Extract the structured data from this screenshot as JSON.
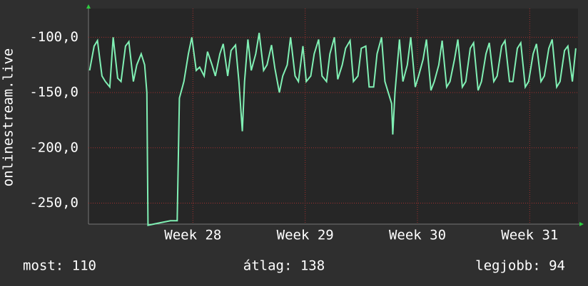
{
  "chart_data": {
    "type": "line",
    "ylabel": "onlinestream.live",
    "xlim": [
      27.07,
      31.43
    ],
    "xticks": [
      {
        "value": 28,
        "label": "Week 28"
      },
      {
        "value": 29,
        "label": "Week 29"
      },
      {
        "value": 30,
        "label": "Week 30"
      },
      {
        "value": 31,
        "label": "Week 31"
      }
    ],
    "ylim": [
      -269,
      -74
    ],
    "yticks": [
      {
        "value": -100,
        "label": "-100,0"
      },
      {
        "value": -150,
        "label": "-150,0"
      },
      {
        "value": -200,
        "label": "-200,0"
      },
      {
        "value": -250,
        "label": "-250,0"
      }
    ],
    "grid": true,
    "x": [
      27.08,
      27.12,
      27.15,
      27.19,
      27.22,
      27.26,
      27.29,
      27.33,
      27.36,
      27.4,
      27.43,
      27.47,
      27.5,
      27.54,
      27.57,
      27.59,
      27.6,
      27.7,
      27.8,
      27.86,
      27.88,
      27.92,
      27.96,
      27.99,
      28.03,
      28.06,
      28.1,
      28.13,
      28.17,
      28.2,
      28.24,
      28.27,
      28.31,
      28.34,
      28.38,
      28.41,
      28.44,
      28.46,
      28.49,
      28.52,
      28.56,
      28.59,
      28.63,
      28.66,
      28.7,
      28.73,
      28.77,
      28.8,
      28.84,
      28.87,
      28.91,
      28.94,
      28.98,
      29.01,
      29.05,
      29.08,
      29.12,
      29.15,
      29.19,
      29.22,
      29.26,
      29.29,
      29.33,
      29.36,
      29.4,
      29.43,
      29.47,
      29.5,
      29.54,
      29.57,
      29.61,
      29.64,
      29.68,
      29.71,
      29.74,
      29.77,
      29.78,
      29.8,
      29.84,
      29.87,
      29.91,
      29.94,
      29.98,
      30.01,
      30.05,
      30.08,
      30.12,
      30.15,
      30.19,
      30.22,
      30.26,
      30.29,
      30.33,
      30.36,
      30.4,
      30.43,
      30.47,
      30.5,
      30.54,
      30.57,
      30.61,
      30.64,
      30.68,
      30.71,
      30.75,
      30.78,
      30.82,
      30.85,
      30.89,
      30.92,
      30.96,
      30.99,
      31.03,
      31.06,
      31.1,
      31.13,
      31.17,
      31.2,
      31.24,
      31.27,
      31.31,
      31.34,
      31.38,
      31.41
    ],
    "series": [
      {
        "color": "#80f0b4",
        "values": [
          -130,
          -108,
          -103,
          -135,
          -140,
          -145,
          -100,
          -137,
          -140,
          -108,
          -104,
          -140,
          -125,
          -115,
          -125,
          -150,
          -270,
          -268,
          -266,
          -266,
          -155,
          -140,
          -115,
          -100,
          -130,
          -127,
          -135,
          -113,
          -125,
          -135,
          -115,
          -106,
          -135,
          -112,
          -107,
          -140,
          -185,
          -140,
          -102,
          -130,
          -115,
          -96,
          -130,
          -125,
          -107,
          -128,
          -150,
          -135,
          -125,
          -100,
          -135,
          -140,
          -108,
          -140,
          -135,
          -115,
          -102,
          -135,
          -140,
          -115,
          -100,
          -138,
          -125,
          -110,
          -103,
          -140,
          -135,
          -110,
          -108,
          -145,
          -145,
          -115,
          -100,
          -140,
          -150,
          -160,
          -188,
          -150,
          -102,
          -140,
          -125,
          -100,
          -145,
          -135,
          -120,
          -102,
          -148,
          -140,
          -125,
          -103,
          -145,
          -140,
          -120,
          -102,
          -145,
          -140,
          -110,
          -105,
          -148,
          -140,
          -115,
          -105,
          -140,
          -135,
          -108,
          -103,
          -140,
          -140,
          -110,
          -105,
          -145,
          -140,
          -115,
          -106,
          -140,
          -135,
          -110,
          -102,
          -145,
          -140,
          -112,
          -108,
          -140,
          -110
        ]
      }
    ],
    "stats": [
      "most: 110",
      "átlag: 138",
      "legjobb: 94"
    ]
  }
}
